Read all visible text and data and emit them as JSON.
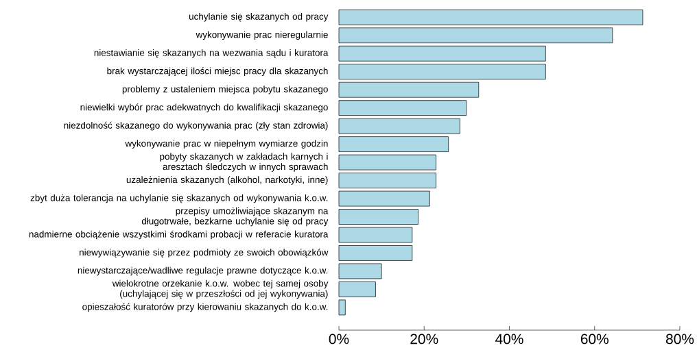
{
  "chart_data": {
    "type": "bar",
    "orientation": "horizontal",
    "categories": [
      "uchylanie się skazanych od pracy",
      "wykonywanie prac nieregularnie",
      "niestawianie się skazanych na wezwania sądu i kuratora",
      "brak wystarczającej ilości miejsc pracy dla skazanych",
      "problemy z ustaleniem miejsca pobytu skazanego",
      "niewielki wybór prac adekwatnych do kwalifikacji skazanego",
      "niezdolność skazanego do wykonywania prac (zły stan zdrowia)",
      "wykonywanie prac w niepełnym wymiarze godzin",
      "pobyty skazanych w zakładach karnych i aresztach śledczych w innych sprawach",
      "uzależnienia skazanych (alkohol, narkotyki, inne)",
      "zbyt duża tolerancja na uchylanie się skazanych od wykonywania k.o.w.",
      "przepisy umożliwiające skazanym na długotrwałe, bezkarne uchylanie się od pracy",
      "nadmierne obciążenie wszystkimi środkami probacji w referacie kuratora",
      "niewywiązywanie się przez podmioty ze swoich obowiązków",
      "niewystarczające/wadliwe regulacje prawne dotyczące k.o.w.",
      "wielokrotne orzekanie k.o.w. wobec tej samej osoby (uchylającej się w przeszłości od jej wykonywania)",
      "opieszałość kuratorów przy kierowaniu skazanych do k.o.w."
    ],
    "values": [
      71.3,
      64.2,
      48.5,
      48.5,
      32.8,
      29.9,
      28.4,
      25.7,
      22.8,
      22.8,
      21.3,
      18.6,
      17.2,
      17.2,
      10.0,
      8.6,
      1.5
    ],
    "color": "#add8e6",
    "xlim": [
      0,
      80
    ],
    "xticks": [
      {
        "value": 0,
        "label": "0%"
      },
      {
        "value": 20,
        "label": "20%"
      },
      {
        "value": 40,
        "label": "40%"
      },
      {
        "value": 60,
        "label": "60%"
      },
      {
        "value": 80,
        "label": "80%"
      }
    ]
  }
}
